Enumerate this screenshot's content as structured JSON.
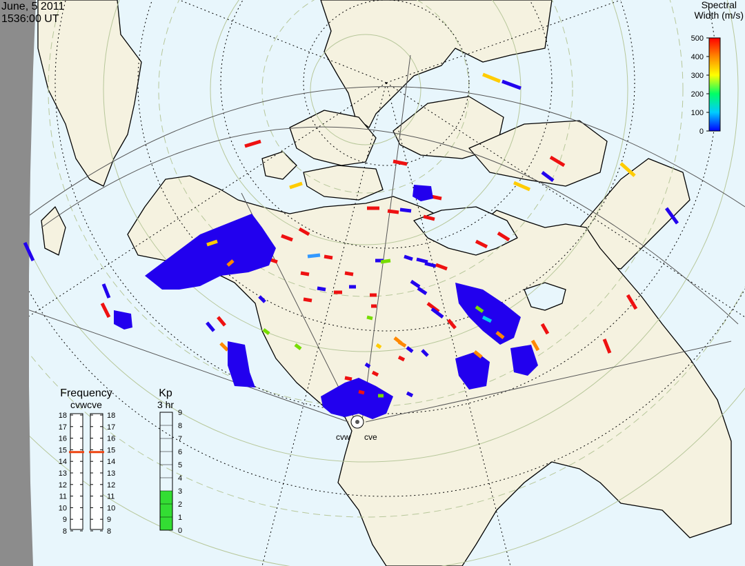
{
  "header": {
    "date": "June, 5 2011",
    "time": "1536:00 UT"
  },
  "color_bar": {
    "title_line1": "Spectral",
    "title_line2": "Width (m/s)",
    "ticks": [
      "500",
      "400",
      "300",
      "200",
      "100",
      "0"
    ]
  },
  "frequency_panel": {
    "title": "Frequency",
    "subtitle": "cvwcve",
    "ticks": [
      "18",
      "17",
      "16",
      "15",
      "14",
      "13",
      "12",
      "11",
      "10",
      "9",
      "8"
    ],
    "cvw_mhz": 14.8,
    "cve_mhz": 14.8
  },
  "kp_panel": {
    "title": "Kp",
    "subtitle": "3 hr",
    "ticks": [
      "9",
      "8",
      "7",
      "6",
      "5",
      "4",
      "3",
      "2",
      "1",
      "0"
    ],
    "kp_value": 3
  },
  "radars": {
    "west": "cvw",
    "east": "cve"
  },
  "colors": {
    "ocean": "#e8f6fc",
    "land": "#f5f2e0",
    "night_mask": "#8c8c8c",
    "grid_latitude": "#b7c79a",
    "kp_fill": "#33dd33",
    "frequency_marker": "#ee4411"
  }
}
